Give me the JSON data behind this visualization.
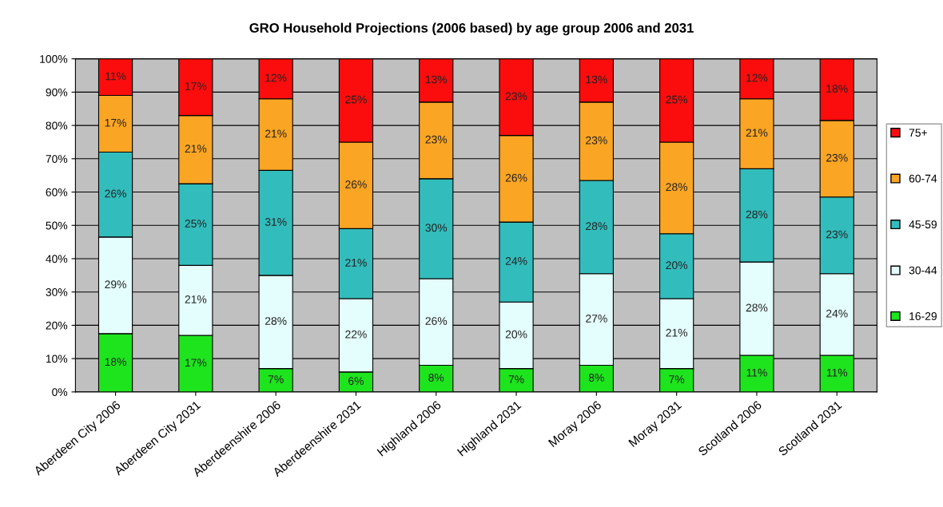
{
  "chart_data": {
    "type": "bar",
    "stacked": true,
    "title": "GRO Household Projections (2006 based) by age group 2006 and 2031",
    "categories": [
      "Aberdeen City 2006",
      "Aberdeen City 2031",
      "Aberdeenshire 2006",
      "Aberdeenshire 2031",
      "Highland 2006",
      "Highland 2031",
      "Moray 2006",
      "Moray 2031",
      "Scotland 2006",
      "Scotland 2031"
    ],
    "series": [
      {
        "name": "16-29",
        "color": "#1ee41e",
        "values": [
          17.5,
          17,
          7,
          6,
          8,
          7,
          8,
          7,
          11,
          11
        ],
        "value_labels": [
          "18%",
          "17%",
          "7%",
          "6%",
          "8%",
          "7%",
          "8%",
          "7%",
          "11%",
          "11%"
        ]
      },
      {
        "name": "30-44",
        "color": "#e4fdfd",
        "values": [
          29,
          21,
          28,
          22,
          26,
          20,
          27.5,
          21,
          28,
          24.5
        ],
        "value_labels": [
          "29%",
          "21%",
          "28%",
          "22%",
          "26%",
          "20%",
          "27%",
          "21%",
          "28%",
          "24%"
        ]
      },
      {
        "name": "45-59",
        "color": "#33bcbc",
        "values": [
          25.5,
          24.5,
          31.5,
          21,
          30,
          24,
          28,
          19.5,
          28,
          23
        ],
        "value_labels": [
          "26%",
          "25%",
          "31%",
          "21%",
          "30%",
          "24%",
          "28%",
          "20%",
          "28%",
          "23%"
        ]
      },
      {
        "name": "60-74",
        "color": "#fba524",
        "values": [
          17,
          20.5,
          21.5,
          26,
          23,
          26,
          23.5,
          27.5,
          21,
          23
        ],
        "value_labels": [
          "17%",
          "21%",
          "21%",
          "26%",
          "23%",
          "26%",
          "23%",
          "28%",
          "21%",
          "23%"
        ]
      },
      {
        "name": "75+",
        "color": "#fb0d0d",
        "values": [
          11,
          17,
          12,
          25,
          13,
          23,
          13,
          25,
          12,
          18.5
        ],
        "value_labels": [
          "11%",
          "17%",
          "12%",
          "25%",
          "13%",
          "23%",
          "13%",
          "25%",
          "12%",
          "18%"
        ]
      }
    ],
    "ylim": [
      0,
      100
    ],
    "yticks": [
      {
        "value": 0,
        "label": "0%"
      },
      {
        "value": 10,
        "label": "10%"
      },
      {
        "value": 20,
        "label": "20%"
      },
      {
        "value": 30,
        "label": "30%"
      },
      {
        "value": 40,
        "label": "40%"
      },
      {
        "value": 50,
        "label": "50%"
      },
      {
        "value": 60,
        "label": "60%"
      },
      {
        "value": 70,
        "label": "70%"
      },
      {
        "value": 80,
        "label": "80%"
      },
      {
        "value": 90,
        "label": "90%"
      },
      {
        "value": 100,
        "label": "100%"
      }
    ],
    "grid": "y",
    "legend": "right"
  }
}
